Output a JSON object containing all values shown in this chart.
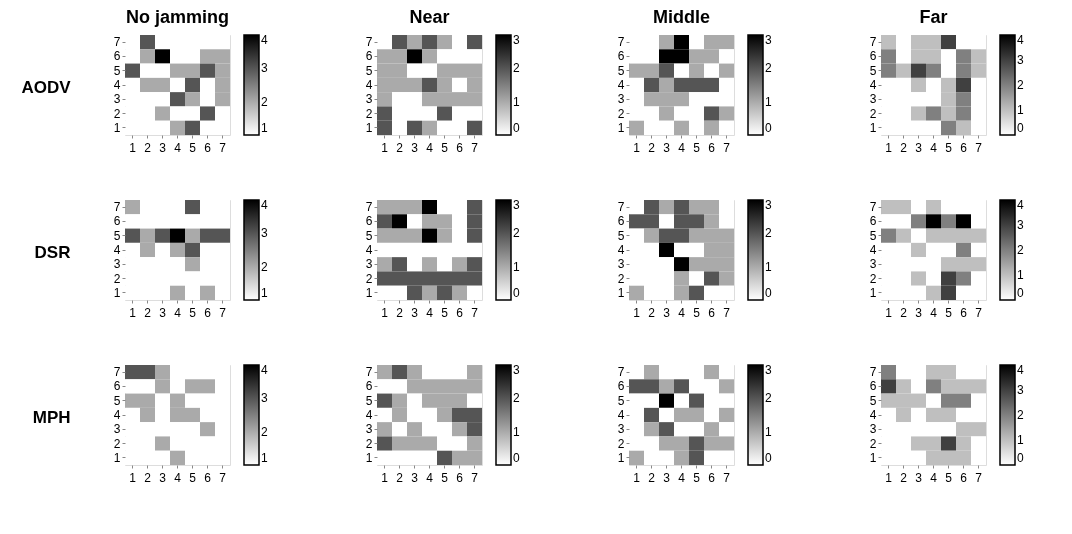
{
  "chart_data": [
    {
      "type": "heatmap",
      "title": "No jamming",
      "ylabel": "AODV",
      "categories": [
        "1",
        "2",
        "3",
        "4",
        "5",
        "6",
        "7"
      ],
      "y_categories": [
        "7",
        "6",
        "5",
        "4",
        "3",
        "2",
        "1"
      ],
      "clim": [
        1,
        4
      ],
      "cticks": [
        1,
        2,
        3,
        4
      ],
      "cells": [
        [
          1,
          3,
          1,
          1,
          1,
          1,
          1
        ],
        [
          1,
          2,
          4,
          1,
          1,
          2,
          2
        ],
        [
          3,
          1,
          1,
          2,
          2,
          3,
          2
        ],
        [
          1,
          2,
          2,
          1,
          3,
          1,
          2
        ],
        [
          1,
          1,
          1,
          3,
          2,
          1,
          2
        ],
        [
          1,
          1,
          2,
          1,
          1,
          3,
          1
        ],
        [
          1,
          1,
          1,
          2,
          3,
          1,
          1
        ]
      ]
    },
    {
      "type": "heatmap",
      "title": "Near",
      "categories": [
        "1",
        "2",
        "3",
        "4",
        "5",
        "6",
        "7"
      ],
      "y_categories": [
        "7",
        "6",
        "5",
        "4",
        "3",
        "2",
        "1"
      ],
      "clim": [
        0,
        3
      ],
      "cticks": [
        0,
        1,
        2,
        3
      ],
      "cells": [
        [
          0,
          2,
          1,
          2,
          1,
          0,
          2
        ],
        [
          1,
          1,
          3,
          1,
          0,
          0,
          0
        ],
        [
          1,
          1,
          0,
          0,
          1,
          1,
          1
        ],
        [
          1,
          1,
          1,
          2,
          1,
          0,
          1
        ],
        [
          1,
          0,
          0,
          1,
          1,
          1,
          1
        ],
        [
          2,
          0,
          0,
          0,
          2,
          0,
          0
        ],
        [
          2,
          0,
          2,
          1,
          0,
          0,
          2
        ]
      ]
    },
    {
      "type": "heatmap",
      "title": "Middle",
      "categories": [
        "1",
        "2",
        "3",
        "4",
        "5",
        "6",
        "7"
      ],
      "y_categories": [
        "7",
        "6",
        "5",
        "4",
        "3",
        "2",
        "1"
      ],
      "clim": [
        0,
        3
      ],
      "cticks": [
        0,
        1,
        2,
        3
      ],
      "cells": [
        [
          0,
          0,
          1,
          3,
          0,
          1,
          1
        ],
        [
          0,
          0,
          3,
          3,
          1,
          1,
          0
        ],
        [
          1,
          1,
          2,
          0,
          1,
          0,
          1
        ],
        [
          0,
          2,
          1,
          2,
          2,
          2,
          0
        ],
        [
          0,
          1,
          1,
          1,
          0,
          0,
          0
        ],
        [
          0,
          0,
          1,
          0,
          0,
          2,
          1
        ],
        [
          1,
          0,
          0,
          1,
          0,
          1,
          0
        ]
      ]
    },
    {
      "type": "heatmap",
      "title": "Far",
      "categories": [
        "1",
        "2",
        "3",
        "4",
        "5",
        "6",
        "7"
      ],
      "y_categories": [
        "7",
        "6",
        "5",
        "4",
        "3",
        "2",
        "1"
      ],
      "clim": [
        0,
        4
      ],
      "cticks": [
        0,
        1,
        2,
        3,
        4
      ],
      "cells": [
        [
          1,
          0,
          1,
          1,
          3,
          0,
          0
        ],
        [
          2,
          0,
          1,
          1,
          0,
          2,
          1
        ],
        [
          2,
          1,
          3,
          2,
          0,
          2,
          1
        ],
        [
          0,
          0,
          1,
          0,
          1,
          3,
          0
        ],
        [
          0,
          0,
          0,
          0,
          1,
          2,
          0
        ],
        [
          0,
          0,
          1,
          2,
          1,
          2,
          0
        ],
        [
          0,
          0,
          0,
          0,
          2,
          1,
          0
        ]
      ]
    },
    {
      "type": "heatmap",
      "ylabel": "DSR",
      "categories": [
        "1",
        "2",
        "3",
        "4",
        "5",
        "6",
        "7"
      ],
      "y_categories": [
        "7",
        "6",
        "5",
        "4",
        "3",
        "2",
        "1"
      ],
      "clim": [
        1,
        4
      ],
      "cticks": [
        1,
        2,
        3,
        4
      ],
      "cells": [
        [
          2,
          1,
          1,
          1,
          3,
          1,
          1
        ],
        [
          1,
          1,
          1,
          1,
          1,
          1,
          1
        ],
        [
          3,
          2,
          3,
          4,
          2,
          3,
          3
        ],
        [
          1,
          2,
          1,
          2,
          3,
          1,
          1
        ],
        [
          1,
          1,
          1,
          1,
          2,
          1,
          1
        ],
        [
          1,
          1,
          1,
          1,
          1,
          1,
          1
        ],
        [
          1,
          1,
          1,
          2,
          1,
          2,
          1
        ]
      ]
    },
    {
      "type": "heatmap",
      "categories": [
        "1",
        "2",
        "3",
        "4",
        "5",
        "6",
        "7"
      ],
      "y_categories": [
        "7",
        "6",
        "5",
        "4",
        "3",
        "2",
        "1"
      ],
      "clim": [
        0,
        3
      ],
      "cticks": [
        0,
        1,
        2,
        3
      ],
      "cells": [
        [
          1,
          1,
          1,
          3,
          0,
          0,
          2
        ],
        [
          2,
          3,
          0,
          1,
          1,
          0,
          2
        ],
        [
          1,
          1,
          1,
          3,
          1,
          0,
          2
        ],
        [
          0,
          0,
          0,
          0,
          0,
          0,
          0
        ],
        [
          1,
          2,
          0,
          1,
          0,
          1,
          2
        ],
        [
          2,
          2,
          2,
          2,
          2,
          2,
          2
        ],
        [
          0,
          0,
          2,
          1,
          2,
          1,
          0
        ]
      ]
    },
    {
      "type": "heatmap",
      "categories": [
        "1",
        "2",
        "3",
        "4",
        "5",
        "6",
        "7"
      ],
      "y_categories": [
        "7",
        "6",
        "5",
        "4",
        "3",
        "2",
        "1"
      ],
      "clim": [
        0,
        3
      ],
      "cticks": [
        0,
        1,
        2,
        3
      ],
      "cells": [
        [
          0,
          2,
          1,
          2,
          1,
          1,
          0
        ],
        [
          2,
          2,
          0,
          2,
          2,
          1,
          0
        ],
        [
          0,
          1,
          2,
          2,
          1,
          1,
          1
        ],
        [
          0,
          0,
          3,
          0,
          0,
          1,
          1
        ],
        [
          0,
          0,
          0,
          3,
          1,
          1,
          1
        ],
        [
          0,
          0,
          0,
          1,
          0,
          2,
          1
        ],
        [
          1,
          0,
          0,
          1,
          2,
          0,
          0
        ]
      ]
    },
    {
      "type": "heatmap",
      "categories": [
        "1",
        "2",
        "3",
        "4",
        "5",
        "6",
        "7"
      ],
      "y_categories": [
        "7",
        "6",
        "5",
        "4",
        "3",
        "2",
        "1"
      ],
      "clim": [
        0,
        4
      ],
      "cticks": [
        0,
        1,
        2,
        3,
        4
      ],
      "cells": [
        [
          1,
          1,
          0,
          1,
          0,
          0,
          0
        ],
        [
          0,
          0,
          2,
          4,
          2,
          4,
          0
        ],
        [
          2,
          1,
          0,
          1,
          1,
          1,
          1
        ],
        [
          0,
          0,
          1,
          0,
          0,
          2,
          0
        ],
        [
          0,
          0,
          0,
          0,
          1,
          1,
          1
        ],
        [
          0,
          0,
          1,
          0,
          3,
          2,
          0
        ],
        [
          0,
          0,
          0,
          1,
          3,
          0,
          0
        ]
      ]
    },
    {
      "type": "heatmap",
      "ylabel": "MPH",
      "categories": [
        "1",
        "2",
        "3",
        "4",
        "5",
        "6",
        "7"
      ],
      "y_categories": [
        "7",
        "6",
        "5",
        "4",
        "3",
        "2",
        "1"
      ],
      "clim": [
        1,
        4
      ],
      "cticks": [
        1,
        2,
        3,
        4
      ],
      "cells": [
        [
          3,
          3,
          2,
          1,
          1,
          1,
          1
        ],
        [
          1,
          1,
          2,
          1,
          2,
          2,
          1
        ],
        [
          2,
          2,
          1,
          2,
          1,
          1,
          1
        ],
        [
          1,
          2,
          1,
          2,
          2,
          1,
          1
        ],
        [
          1,
          1,
          1,
          1,
          1,
          2,
          1
        ],
        [
          1,
          1,
          2,
          1,
          1,
          1,
          1
        ],
        [
          1,
          1,
          1,
          2,
          1,
          1,
          1
        ]
      ]
    },
    {
      "type": "heatmap",
      "categories": [
        "1",
        "2",
        "3",
        "4",
        "5",
        "6",
        "7"
      ],
      "y_categories": [
        "7",
        "6",
        "5",
        "4",
        "3",
        "2",
        "1"
      ],
      "clim": [
        0,
        3
      ],
      "cticks": [
        0,
        1,
        2,
        3
      ],
      "cells": [
        [
          1,
          2,
          1,
          0,
          0,
          0,
          1
        ],
        [
          0,
          0,
          1,
          1,
          1,
          1,
          1
        ],
        [
          2,
          1,
          0,
          1,
          1,
          1,
          0
        ],
        [
          0,
          1,
          0,
          0,
          1,
          2,
          2
        ],
        [
          1,
          0,
          1,
          0,
          0,
          1,
          2
        ],
        [
          2,
          1,
          1,
          1,
          0,
          0,
          1
        ],
        [
          0,
          0,
          0,
          0,
          2,
          1,
          1
        ]
      ]
    },
    {
      "type": "heatmap",
      "categories": [
        "1",
        "2",
        "3",
        "4",
        "5",
        "6",
        "7"
      ],
      "y_categories": [
        "7",
        "6",
        "5",
        "4",
        "3",
        "2",
        "1"
      ],
      "clim": [
        0,
        3
      ],
      "cticks": [
        0,
        1,
        2,
        3
      ],
      "cells": [
        [
          0,
          1,
          0,
          0,
          0,
          1,
          0
        ],
        [
          2,
          2,
          1,
          2,
          0,
          0,
          1
        ],
        [
          0,
          0,
          3,
          0,
          2,
          0,
          0
        ],
        [
          0,
          2,
          0,
          1,
          1,
          0,
          1
        ],
        [
          0,
          1,
          2,
          0,
          0,
          1,
          0
        ],
        [
          0,
          0,
          1,
          1,
          2,
          1,
          1
        ],
        [
          1,
          0,
          0,
          1,
          2,
          0,
          0
        ]
      ]
    },
    {
      "type": "heatmap",
      "categories": [
        "1",
        "2",
        "3",
        "4",
        "5",
        "6",
        "7"
      ],
      "y_categories": [
        "7",
        "6",
        "5",
        "4",
        "3",
        "2",
        "1"
      ],
      "clim": [
        0,
        4
      ],
      "cticks": [
        0,
        1,
        2,
        3,
        4
      ],
      "cells": [
        [
          2,
          0,
          0,
          1,
          1,
          0,
          0
        ],
        [
          3,
          1,
          0,
          2,
          1,
          1,
          1
        ],
        [
          1,
          1,
          1,
          0,
          2,
          2,
          0
        ],
        [
          0,
          1,
          0,
          1,
          1,
          0,
          0
        ],
        [
          0,
          0,
          0,
          0,
          0,
          1,
          1
        ],
        [
          0,
          0,
          1,
          1,
          3,
          1,
          0
        ],
        [
          0,
          0,
          0,
          1,
          1,
          1,
          0
        ]
      ]
    }
  ]
}
